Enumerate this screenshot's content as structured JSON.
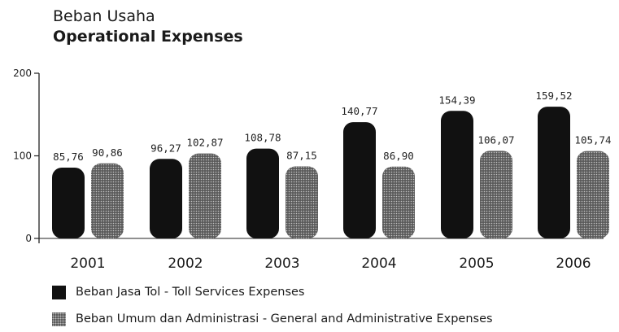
{
  "header": {
    "subtitle": "Beban Usaha",
    "title": "Operational Expenses"
  },
  "chart_data": {
    "type": "bar",
    "categories": [
      "2001",
      "2002",
      "2003",
      "2004",
      "2005",
      "2006"
    ],
    "series": [
      {
        "name": "Beban Jasa Tol - Toll Services Expenses",
        "values": [
          85.76,
          96.27,
          108.78,
          140.77,
          154.39,
          159.52
        ],
        "labels": [
          "85,76",
          "96,27",
          "108,78",
          "140,77",
          "154,39",
          "159,52"
        ],
        "color": "#111111",
        "fill": "solid"
      },
      {
        "name": "Beban Umum dan Administrasi - General and Administrative Expenses",
        "values": [
          90.86,
          102.87,
          87.15,
          86.9,
          106.07,
          105.74
        ],
        "labels": [
          "90,86",
          "102,87",
          "87,15",
          "86,90",
          "106,07",
          "105,74"
        ],
        "color": "#555555",
        "fill": "dotted"
      }
    ],
    "yticks": [
      0,
      100,
      200
    ],
    "ylim": [
      0,
      200
    ],
    "legend_position": "bottom",
    "grid": false
  }
}
